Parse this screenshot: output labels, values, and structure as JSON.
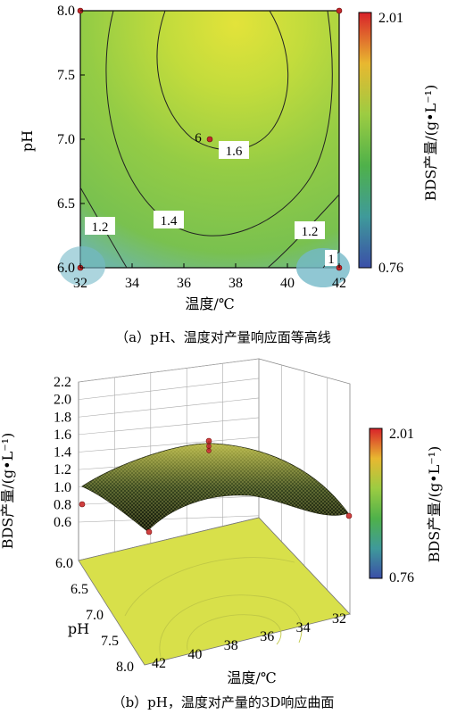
{
  "chart_data": [
    {
      "type": "contour",
      "xlabel": "温度/℃",
      "ylabel": "pH",
      "x_ticks": [
        "32",
        "34",
        "36",
        "38",
        "40",
        "42"
      ],
      "y_ticks": [
        "6.0",
        "6.5",
        "7.0",
        "7.5",
        "8.0"
      ],
      "xlim": [
        32,
        42
      ],
      "ylim": [
        6.0,
        8.0
      ],
      "colorbar": {
        "title": "BDS产量/(g•L⁻¹)",
        "max_label": "2.01",
        "min_label": "0.76"
      },
      "contour_labels": [
        "1.2",
        "1.4",
        "1.6",
        "1.2",
        "1"
      ],
      "center_point_label": "6",
      "points": [
        {
          "x": 32,
          "y": 8.0
        },
        {
          "x": 42,
          "y": 8.0
        },
        {
          "x": 37,
          "y": 7.0
        },
        {
          "x": 32,
          "y": 6.0
        },
        {
          "x": 42,
          "y": 6.0
        }
      ],
      "caption": "（a）pH、温度对产量响应面等高线"
    },
    {
      "type": "surface3d",
      "zlabel": "BDS产量/(g•L⁻¹)",
      "xlabel": "温度/℃",
      "ylabel": "pH",
      "z_ticks": [
        "0.6",
        "0.8",
        "1.0",
        "1.2",
        "1.4",
        "1.6",
        "1.8",
        "2.0",
        "2.2"
      ],
      "x_ticks": [
        "42",
        "40",
        "38",
        "36",
        "34",
        "32"
      ],
      "y_ticks": [
        "6.0",
        "6.5",
        "7.0",
        "7.5",
        "8.0"
      ],
      "colorbar": {
        "title": "BDS产量/(g•L⁻¹)",
        "max_label": "2.01",
        "min_label": "0.76"
      },
      "caption": "（b）pH，温度对产量的3D响应曲面"
    }
  ]
}
